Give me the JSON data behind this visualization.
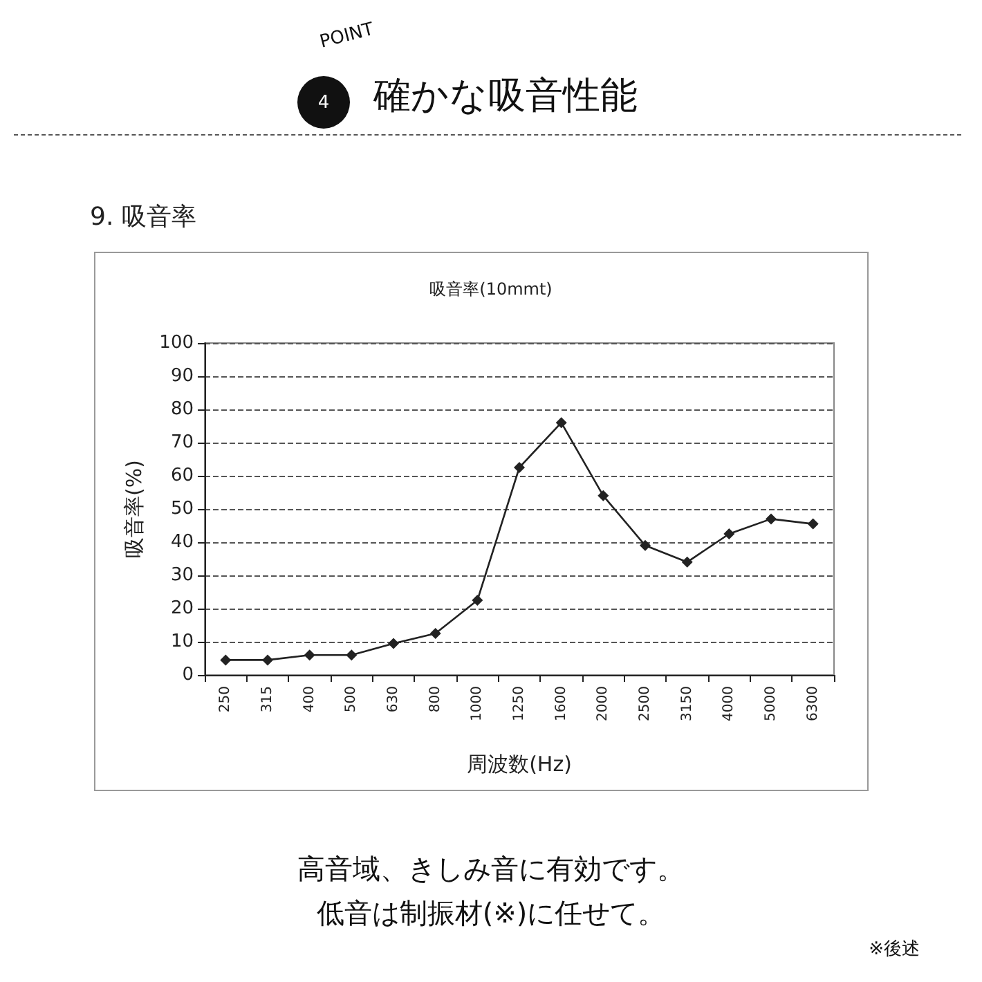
{
  "chart_data": {
    "type": "line",
    "title": "吸音率(10mmt)",
    "xlabel": "周波数(Hz)",
    "ylabel": "吸音率(%)",
    "annotations": [
      "POINT",
      "4",
      "確かな吸音性能",
      "9. 吸音率",
      "高音域、きしみ音に有効です。",
      "低音は制振材(※)に任せて。",
      "※後述"
    ],
    "categories": [
      "250",
      "315",
      "400",
      "500",
      "630",
      "800",
      "1000",
      "1250",
      "1600",
      "2000",
      "2500",
      "3150",
      "4000",
      "5000",
      "6300"
    ],
    "series": [
      {
        "color": "#222222",
        "values": [
          4.5,
          4.5,
          6,
          6,
          9.5,
          12.5,
          22.5,
          62.5,
          76,
          54,
          39,
          34,
          42.5,
          47,
          45.5
        ]
      }
    ],
    "ylim": [
      0,
      100
    ],
    "yticks": [
      0,
      10,
      20,
      30,
      40,
      50,
      60,
      70,
      80,
      90,
      100
    ],
    "grid": "y",
    "marker": "diamond",
    "line_style": "solid"
  }
}
